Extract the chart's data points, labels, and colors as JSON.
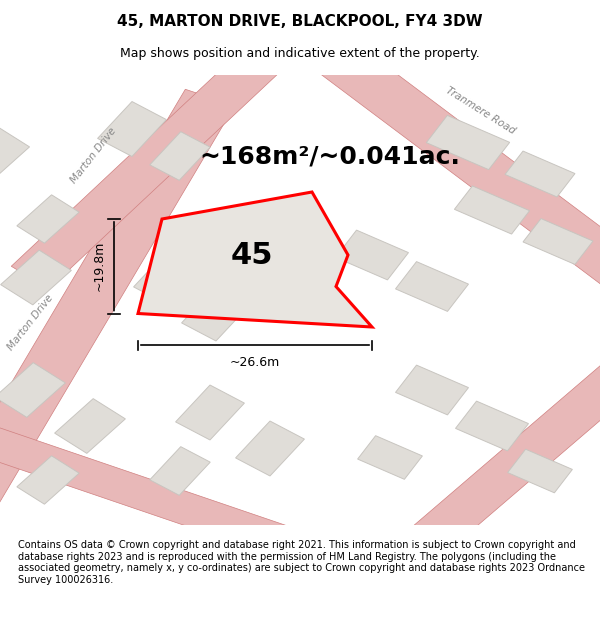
{
  "title": "45, MARTON DRIVE, BLACKPOOL, FY4 3DW",
  "subtitle": "Map shows position and indicative extent of the property.",
  "area_text": "~168m²/~0.041ac.",
  "number_label": "45",
  "dim_width": "~26.6m",
  "dim_height": "~19.8m",
  "footer": "Contains OS data © Crown copyright and database right 2021. This information is subject to Crown copyright and database rights 2023 and is reproduced with the permission of HM Land Registry. The polygons (including the associated geometry, namely x, y co-ordinates) are subject to Crown copyright and database rights 2023 Ordnance Survey 100026316.",
  "bg_color": "#f0eeea",
  "map_bg": "#f5f3f0",
  "road_color_light": "#e8b8b8",
  "road_color_dark": "#d08080",
  "building_fill": "#e0ddd8",
  "building_stroke": "#c8c5c0",
  "highlight_fill": "#e8e5e0",
  "highlight_stroke": "#ff0000",
  "title_fontsize": 11,
  "subtitle_fontsize": 9,
  "area_fontsize": 18,
  "number_fontsize": 22,
  "dim_fontsize": 9,
  "footer_fontsize": 7
}
